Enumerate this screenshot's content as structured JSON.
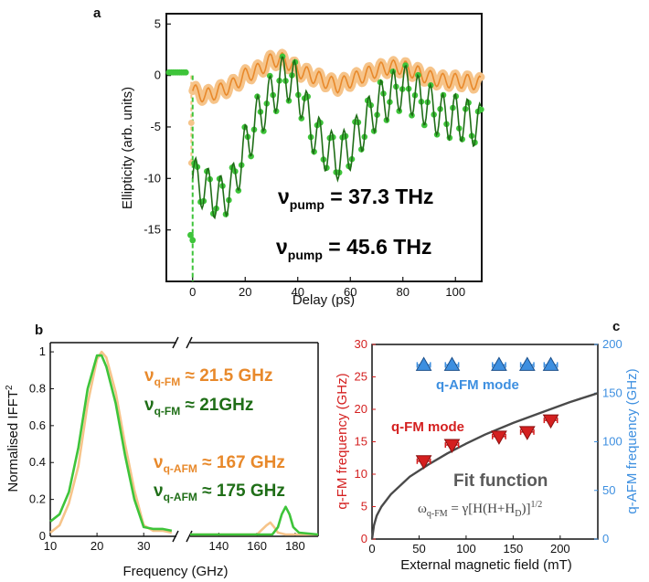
{
  "colors": {
    "orange": "#e8892b",
    "orange_light": "#f6c48a",
    "green_dark": "#1f6e17",
    "green_light": "#3ec43a",
    "red": "#d41f1f",
    "blue": "#3d8fe0",
    "fit": "#4a4a4a"
  },
  "chart_data": [
    {
      "panel": "a",
      "type": "line",
      "xlabel": "Delay (ps)",
      "ylabel": "Ellipticity (arb. units)",
      "xlim": [
        -10,
        110
      ],
      "ylim": [
        -20,
        6
      ],
      "xticks": [
        "0",
        "20",
        "40",
        "60",
        "80",
        "100"
      ],
      "yticks": [
        "5",
        "0",
        "-5",
        "-10",
        "-15"
      ],
      "series": [
        {
          "name": "νpump = 37.3 THz",
          "label_main": "ν",
          "label_sub": "pump",
          "label_rest": " = 37.3 THz",
          "envelope_x": [
            0,
            5,
            10,
            15,
            20,
            25,
            30,
            35,
            40,
            45,
            50,
            55,
            60,
            65,
            70,
            75,
            80,
            85,
            90,
            95,
            100,
            105,
            110
          ],
          "envelope_y": [
            -1.5,
            -2,
            -1.5,
            -1,
            0,
            0.5,
            1.5,
            1.5,
            0.5,
            0,
            -0.5,
            -1,
            -0.5,
            0,
            0.5,
            0.8,
            0.8,
            0.3,
            -0.2,
            -0.5,
            -0.5,
            -0.6,
            -0.8
          ],
          "oscillation_amplitude": 0.7,
          "oscillation_period_ps": 4.7
        },
        {
          "name": "νpump = 45.6 THz",
          "label_main": "ν",
          "label_sub": "pump",
          "label_rest": " = 45.6 THz",
          "envelope_x": [
            0,
            5,
            10,
            15,
            20,
            25,
            30,
            35,
            40,
            45,
            50,
            55,
            60,
            65,
            70,
            75,
            80,
            85,
            90,
            95,
            100,
            105,
            110
          ],
          "envelope_y": [
            -10,
            -11,
            -12,
            -11,
            -7,
            -4,
            -2,
            0,
            -1,
            -5,
            -7,
            -8,
            -7,
            -5,
            -3,
            -2,
            -1,
            -2,
            -3,
            -4,
            -4,
            -4.5,
            -5
          ],
          "oscillation_amplitude": 2.2,
          "oscillation_period_ps": 4.7
        }
      ]
    },
    {
      "panel": "b",
      "type": "line",
      "xlabel": "Frequency (GHz)",
      "ylabel": "Normalised IFFT",
      "ylabel_sup": "2",
      "ylim": [
        0,
        1.05
      ],
      "left_segment_xlim": [
        10,
        37
      ],
      "right_segment_xlim": [
        125,
        192
      ],
      "xticks_left": [
        "10",
        "20",
        "30"
      ],
      "xticks_right": [
        "140",
        "160",
        "180"
      ],
      "yticks": [
        "0",
        "0.2",
        "0.4",
        "0.6",
        "0.8",
        "1"
      ],
      "series": [
        {
          "name": "orange spectrum",
          "x": [
            10,
            12,
            14,
            16,
            18,
            20,
            21,
            22,
            24,
            26,
            28,
            30,
            32,
            34,
            36,
            125,
            160,
            163,
            165,
            167,
            169,
            171,
            175,
            192
          ],
          "y": [
            0.02,
            0.06,
            0.18,
            0.38,
            0.72,
            0.96,
            1.0,
            0.97,
            0.78,
            0.5,
            0.25,
            0.06,
            0.03,
            0.03,
            0.02,
            0.01,
            0.01,
            0.04,
            0.06,
            0.075,
            0.05,
            0.02,
            0.01,
            0.01
          ]
        },
        {
          "name": "green spectrum",
          "x": [
            10,
            12,
            14,
            16,
            18,
            20,
            21,
            22,
            24,
            26,
            28,
            30,
            32,
            34,
            36,
            125,
            168,
            171,
            173,
            175,
            177,
            179,
            182,
            192
          ],
          "y": [
            0.08,
            0.12,
            0.24,
            0.48,
            0.8,
            0.98,
            0.98,
            0.92,
            0.72,
            0.44,
            0.2,
            0.05,
            0.04,
            0.04,
            0.03,
            0.01,
            0.01,
            0.05,
            0.12,
            0.16,
            0.12,
            0.05,
            0.02,
            0.01
          ]
        }
      ],
      "annotations": [
        {
          "main": "ν",
          "sub": "q-FM",
          "rest": " ≈ 21.5 GHz",
          "color": "orange"
        },
        {
          "main": "ν",
          "sub": "q-FM",
          "rest": " ≈ 21GHz",
          "color": "green"
        },
        {
          "main": "ν",
          "sub": "q-AFM",
          "rest": " ≈ 167 GHz",
          "color": "orange"
        },
        {
          "main": "ν",
          "sub": "q-AFM",
          "rest": " ≈ 175 GHz",
          "color": "green"
        }
      ]
    },
    {
      "panel": "c",
      "type": "scatter",
      "xlabel": "External magnetic field (mT)",
      "ylabel_left": "q-FM frequency (GHz)",
      "ylabel_right": "q-AFM frequency (GHz)",
      "xlim": [
        0,
        240
      ],
      "ylim_left": [
        0,
        30
      ],
      "ylim_right": [
        0,
        200
      ],
      "xticks": [
        "0",
        "50",
        "100",
        "150",
        "200"
      ],
      "yticks_left": [
        "0",
        "5",
        "10",
        "15",
        "20",
        "25",
        "30"
      ],
      "yticks_right": [
        "0",
        "50",
        "100",
        "150",
        "200"
      ],
      "series": [
        {
          "name": "q-AFM mode",
          "axis": "right",
          "marker": "triangle-up",
          "x": [
            55,
            85,
            135,
            165,
            190
          ],
          "y": [
            179,
            179,
            179,
            179,
            179
          ],
          "xerr": 7
        },
        {
          "name": "q-FM mode",
          "axis": "left",
          "marker": "triangle-down",
          "x": [
            55,
            85,
            135,
            165,
            190
          ],
          "y": [
            12,
            14.5,
            15.8,
            16.5,
            18.3
          ],
          "xerr": 7
        },
        {
          "name": "Fit function",
          "axis": "left",
          "type": "line",
          "x": [
            0,
            2,
            5,
            10,
            20,
            40,
            60,
            80,
            100,
            120,
            150,
            180,
            210,
            240
          ],
          "y": [
            0,
            2.1,
            3.6,
            5.0,
            6.9,
            9.6,
            11.5,
            13.2,
            14.7,
            16.1,
            17.9,
            19.5,
            21.1,
            22.5
          ]
        }
      ],
      "fit_title": "Fit function",
      "fit_formula": "ω",
      "fit_formula_sub": "q-FM",
      "fit_formula_rest": " = γ[H(H+H",
      "fit_formula_sub2": "D",
      "fit_formula_tail": ")]",
      "fit_formula_sup": "1/2"
    }
  ],
  "panels": {
    "a": "a",
    "b": "b",
    "c": "c"
  }
}
